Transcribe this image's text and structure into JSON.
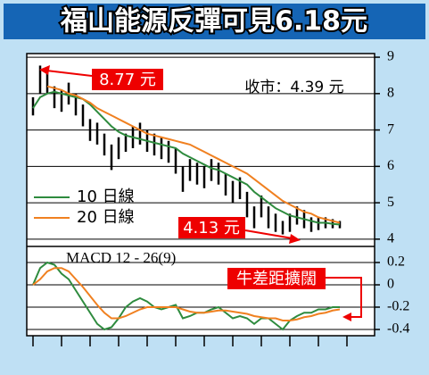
{
  "chart_data": [
    {
      "type": "stock",
      "title": "福山能源反彈可見6.18元",
      "high": [
        7.9,
        8.77,
        8.6,
        8.2,
        8.1,
        8.3,
        8.0,
        7.7,
        7.3,
        7.2,
        6.9,
        6.6,
        6.8,
        6.9,
        7.1,
        7.2,
        7.0,
        6.9,
        6.8,
        6.7,
        6.5,
        6.0,
        6.2,
        6.1,
        6.0,
        6.2,
        6.1,
        5.8,
        5.6,
        5.7,
        5.3,
        4.9,
        5.2,
        4.9,
        4.7,
        4.5,
        4.7,
        4.9,
        4.8,
        4.6,
        4.6,
        4.6,
        4.55,
        4.5
      ],
      "low": [
        7.4,
        8.0,
        8.0,
        7.6,
        7.5,
        7.7,
        7.4,
        7.1,
        6.7,
        6.6,
        6.3,
        5.9,
        6.2,
        6.4,
        6.5,
        6.6,
        6.4,
        6.3,
        6.2,
        6.1,
        5.8,
        5.3,
        5.6,
        5.5,
        5.4,
        5.6,
        5.5,
        5.2,
        5.0,
        5.1,
        4.6,
        4.3,
        4.6,
        4.3,
        4.2,
        4.13,
        4.2,
        4.4,
        4.3,
        4.2,
        4.25,
        4.3,
        4.3,
        4.3
      ],
      "series": [
        {
          "name": "10 日線",
          "color": "#2e8b3e",
          "values": [
            7.6,
            7.9,
            8.0,
            8.05,
            8.0,
            7.95,
            7.9,
            7.85,
            7.7,
            7.5,
            7.3,
            7.1,
            6.95,
            6.85,
            6.8,
            6.75,
            6.7,
            6.65,
            6.6,
            6.55,
            6.5,
            6.35,
            6.25,
            6.15,
            6.05,
            5.95,
            5.9,
            5.8,
            5.7,
            5.6,
            5.5,
            5.3,
            5.15,
            5.0,
            4.85,
            4.75,
            4.65,
            4.6,
            4.55,
            4.5,
            4.45,
            4.45,
            4.42,
            4.4
          ]
        },
        {
          "name": "20 日線",
          "color": "#f08020",
          "values": [
            null,
            null,
            8.2,
            8.15,
            8.1,
            8.0,
            7.95,
            7.85,
            7.75,
            7.6,
            7.5,
            7.4,
            7.3,
            7.2,
            7.1,
            7.0,
            6.9,
            6.85,
            6.8,
            6.75,
            6.7,
            6.65,
            6.6,
            6.5,
            6.4,
            6.3,
            6.2,
            6.1,
            6.0,
            5.9,
            5.8,
            5.65,
            5.5,
            5.35,
            5.2,
            5.05,
            4.95,
            4.85,
            4.75,
            4.7,
            4.6,
            4.55,
            4.5,
            4.45
          ]
        }
      ],
      "ylim": [
        3.8,
        9.1
      ],
      "yticks": [
        4,
        5,
        6,
        7,
        8,
        9
      ],
      "grid": true,
      "annotations": {
        "high_label": "8.77 元",
        "low_label": "4.13 元",
        "close_label": "收市：4.39 元"
      }
    },
    {
      "type": "line",
      "title": "MACD 12 - 26(9)",
      "series": [
        {
          "color": "#2e8b3e",
          "values": [
            0.0,
            0.15,
            0.2,
            0.18,
            0.1,
            0.05,
            -0.05,
            -0.15,
            -0.25,
            -0.35,
            -0.4,
            -0.38,
            -0.3,
            -0.2,
            -0.15,
            -0.12,
            -0.15,
            -0.2,
            -0.22,
            -0.2,
            -0.18,
            -0.3,
            -0.28,
            -0.25,
            -0.25,
            -0.22,
            -0.2,
            -0.25,
            -0.3,
            -0.28,
            -0.3,
            -0.35,
            -0.3,
            -0.3,
            -0.35,
            -0.4,
            -0.32,
            -0.28,
            -0.25,
            -0.25,
            -0.22,
            -0.22,
            -0.2,
            -0.2
          ]
        },
        {
          "color": "#f08020",
          "values": [
            0.0,
            0.05,
            0.12,
            0.15,
            0.15,
            0.12,
            0.05,
            -0.02,
            -0.1,
            -0.18,
            -0.25,
            -0.3,
            -0.3,
            -0.28,
            -0.25,
            -0.22,
            -0.2,
            -0.2,
            -0.2,
            -0.2,
            -0.2,
            -0.22,
            -0.24,
            -0.25,
            -0.25,
            -0.24,
            -0.23,
            -0.23,
            -0.24,
            -0.25,
            -0.26,
            -0.28,
            -0.29,
            -0.3,
            -0.3,
            -0.32,
            -0.32,
            -0.31,
            -0.29,
            -0.28,
            -0.26,
            -0.25,
            -0.23,
            -0.22
          ]
        }
      ],
      "ylim": [
        -0.456,
        0.344
      ],
      "yticks": [
        0.2,
        0,
        -0.2,
        -0.4
      ],
      "grid": true,
      "annotation": "牛差距擴闊"
    }
  ]
}
